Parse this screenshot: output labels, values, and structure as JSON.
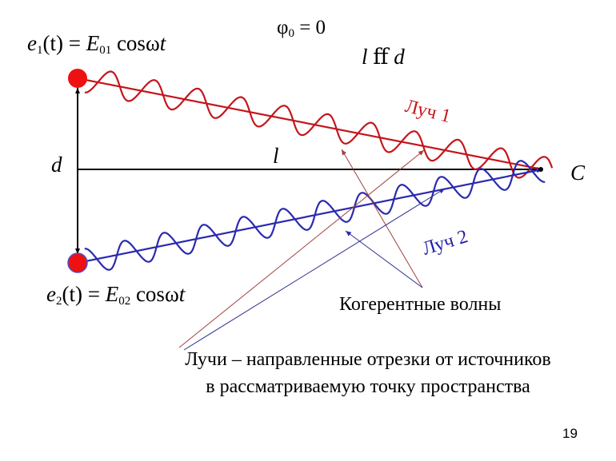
{
  "formulas": {
    "e1": {
      "lhs_var": "e",
      "lhs_sub": "1",
      "lhs_arg": "(t)",
      "eq": " = ",
      "amp_var": "E",
      "amp_sub": "01",
      "rhs": " cosω",
      "rhs_t": "t"
    },
    "e2": {
      "lhs_var": "e",
      "lhs_sub": "2",
      "lhs_arg": "(t)",
      "eq": " = ",
      "amp_var": "E",
      "amp_sub": "02",
      "rhs": " cosω",
      "rhs_t": "t"
    },
    "phase": {
      "var": "φ",
      "sub": "0",
      "rest": " = 0"
    },
    "condition": {
      "l": "l",
      "rel": " ﬀ ",
      "d": "d"
    }
  },
  "labels": {
    "d": "d",
    "l": "l",
    "point": "C",
    "ray1": "Луч 1",
    "ray2": "Луч 2",
    "coherent": "Когерентные волны",
    "description_line1": "Лучи – направленные отрезки от источников",
    "description_line2": "в рассматриваемую точку пространства"
  },
  "page_number": "19",
  "colors": {
    "ray1": "#c4161c",
    "ray2": "#2a2ab0",
    "source": "#ee1111",
    "axis": "#000000",
    "pointer_red": "#a04040",
    "pointer_blue": "#303090"
  },
  "geometry": {
    "source1": [
      97,
      98
    ],
    "source2": [
      97,
      329
    ],
    "point_c": [
      678,
      212
    ],
    "wave_amplitude": 16,
    "wave_count_ray1": 10.5,
    "wave_count_ray2": 11.5
  }
}
